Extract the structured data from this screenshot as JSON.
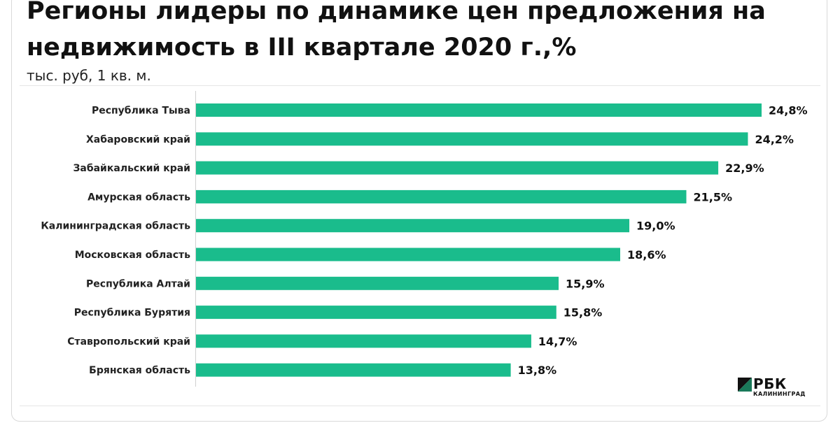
{
  "chart_data": {
    "type": "bar",
    "orientation": "horizontal",
    "title": "Регионы лидеры по динамике цен предложения на недвижимость в III квартале 2020 г.,%",
    "subtitle": "тыс. руб, 1 кв. м.",
    "categories": [
      "Республика Тыва",
      "Хабаровский край",
      "Забайкальский край",
      "Амурская область",
      "Калининградская область",
      "Московская область",
      "Республика Алтай",
      "Республика Бурятия",
      "Ставропольский край",
      "Брянская область"
    ],
    "values": [
      24.8,
      24.2,
      22.9,
      21.5,
      19.0,
      18.6,
      15.9,
      15.8,
      14.7,
      13.8
    ],
    "value_labels": [
      "24,8%",
      "24,2%",
      "22,9%",
      "21,5%",
      "19,0%",
      "18,6%",
      "15,9%",
      "15,8%",
      "14,7%",
      "13,8%"
    ],
    "xlim": [
      0,
      24.8
    ],
    "bar_color": "#1abc8c",
    "grid": false,
    "legend": "none"
  },
  "logo": {
    "name": "РБК",
    "sub": "КАЛИНИНГРАД",
    "mark_color": "#1a7a5a"
  }
}
